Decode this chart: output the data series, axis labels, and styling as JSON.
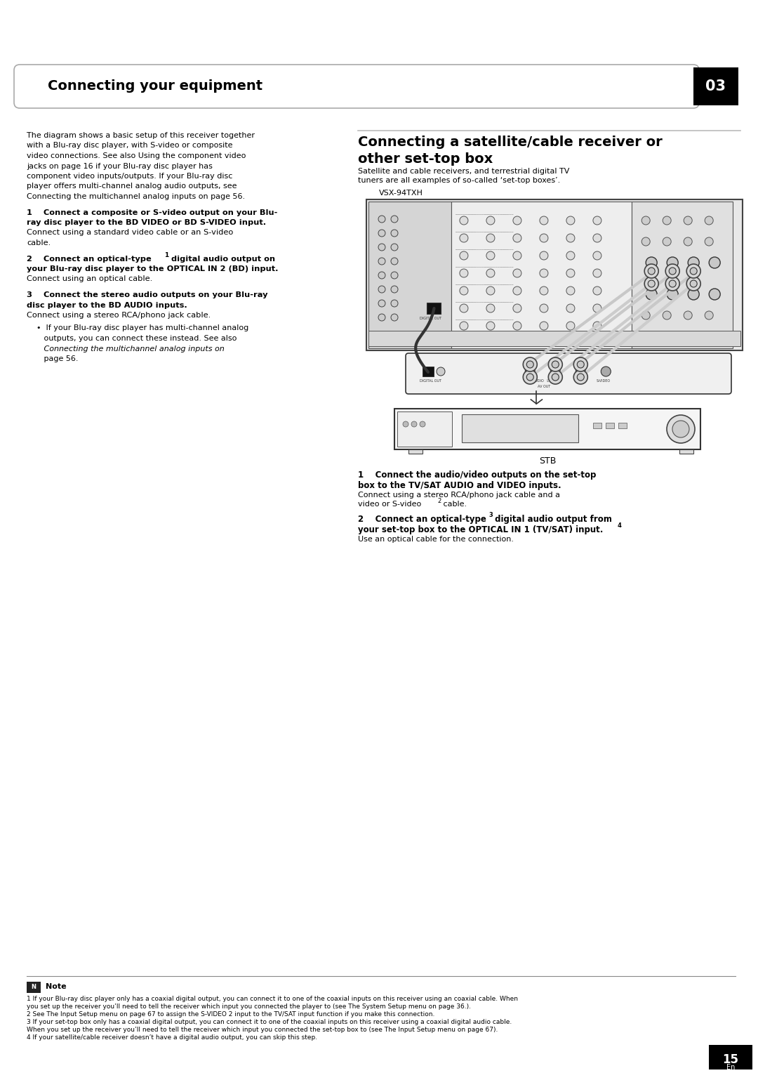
{
  "bg_color": "#ffffff",
  "header_text": "Connecting your equipment",
  "header_chapter": "03",
  "page_number": "15",
  "page_lang": "En",
  "intro_full": "The diagram shows a basic setup of this receiver together with a Blu-ray disc player, with S-video or composite video connections. See also Using the component video jacks on page 16 if your Blu-ray disc player has component video inputs/outputs. If your Blu-ray disc player offers multi-channel analog audio outputs, see Connecting the multichannel analog inputs on page 56.",
  "right_title_line1": "Connecting a satellite/cable receiver or",
  "right_title_line2": "other set-top box",
  "right_subtitle_line1": "Satellite and cable receivers, and terrestrial digital TV",
  "right_subtitle_line2": "tuners are all examples of so-called ‘set-top boxes’.",
  "diagram_label_top": "VSX-94TXH",
  "diagram_label_bottom": "STB",
  "note_lines": [
    "1 If your Blu-ray disc player only has a coaxial digital output, you can connect it to one of the coaxial inputs on this receiver using an coaxial cable. When",
    "you set up the receiver you’ll need to tell the receiver which input you connected the player to (see The System Setup menu on page 36.).",
    "2 See The Input Setup menu on page 67 to assign the S-VIDEO 2 input to the TV/SAT input function if you make this connection.",
    "3 If your set-top box only has a coaxial digital output, you can connect it to one of the coaxial inputs on this receiver using a coaxial digital audio cable.",
    "When you set up the receiver you’ll need to tell the receiver which input you connected the set-top box to (see The Input Setup menu on page 67).",
    "4 If your satellite/cable receiver doesn’t have a digital audio output, you can skip this step."
  ]
}
